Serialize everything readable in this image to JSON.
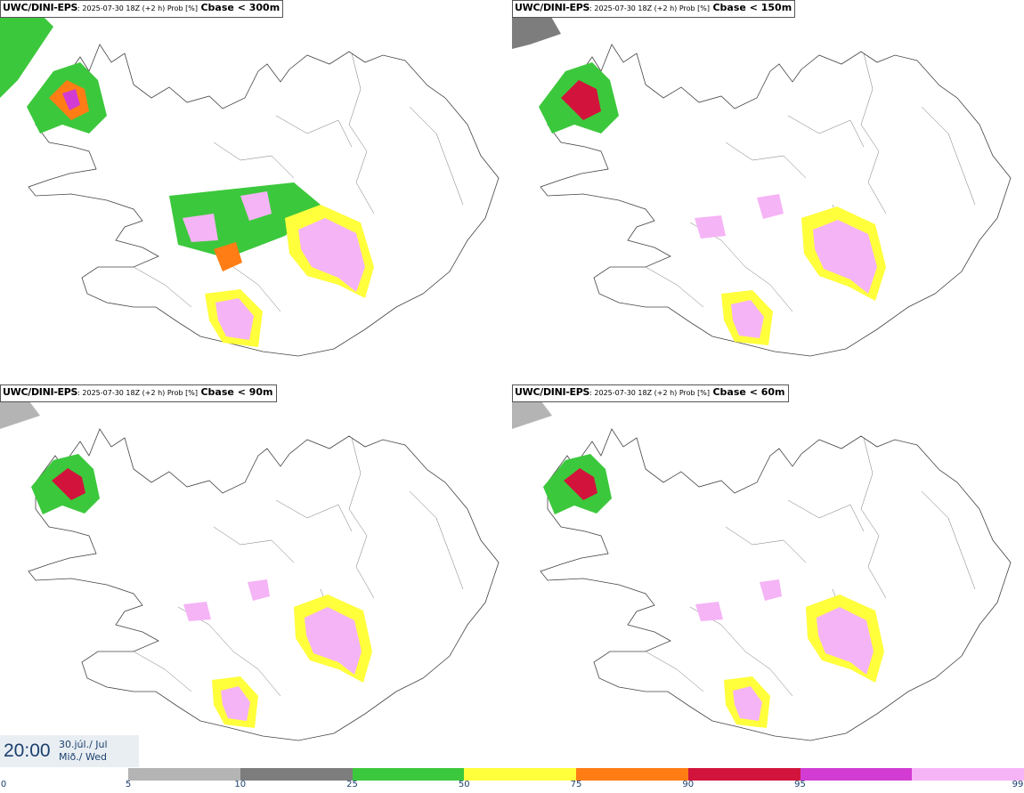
{
  "panels": [
    {
      "model": "UWC/DINI-EPS",
      "run": ": 2025-07-30 18Z (+2 h) Prob [%]",
      "threshold": "Cbase < 300m"
    },
    {
      "model": "UWC/DINI-EPS",
      "run": ": 2025-07-30 18Z (+2 h) Prob [%]",
      "threshold": "Cbase < 150m"
    },
    {
      "model": "UWC/DINI-EPS",
      "run": ": 2025-07-30 18Z (+2 h) Prob [%]",
      "threshold": "Cbase < 90m"
    },
    {
      "model": "UWC/DINI-EPS",
      "run": ": 2025-07-30 18Z (+2 h) Prob [%]",
      "threshold": "Cbase < 60m"
    }
  ],
  "time": {
    "clock": "20:00",
    "date_line1": "30.júl./ Jul",
    "date_line2": "Mið./ Wed"
  },
  "legend": {
    "tick_labels": [
      "0",
      "5",
      "10",
      "25",
      "50",
      "75",
      "90",
      "95",
      "99"
    ],
    "colors": [
      "#b4b4b4",
      "#7d7d7d",
      "#3cc83c",
      "#ffff3c",
      "#ff7d14",
      "#d2143c",
      "#d23cd2",
      "#f5b4f5"
    ]
  }
}
